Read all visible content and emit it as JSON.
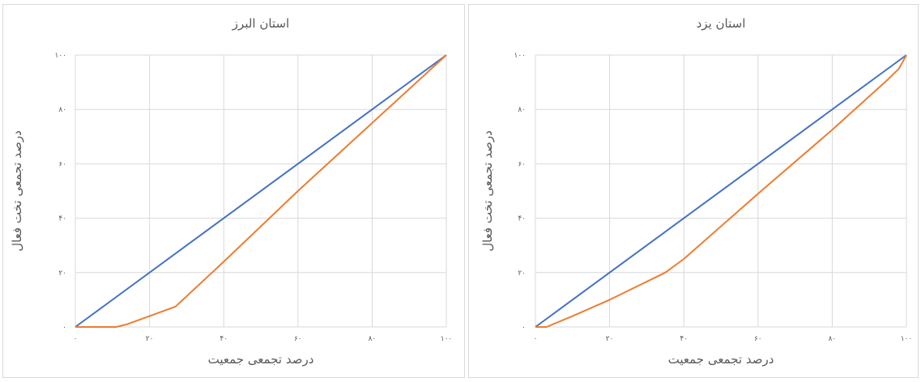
{
  "chart_data": [
    {
      "type": "line",
      "title": "استان البرز",
      "xlabel": "درصد تجمعی جمعیت",
      "ylabel": "درصد تجمعی تخت فعال",
      "xlim": [
        0,
        100
      ],
      "ylim": [
        0,
        100
      ],
      "xticks": [
        0,
        20,
        40,
        60,
        80,
        100
      ],
      "yticks": [
        0,
        20,
        40,
        60,
        80,
        100
      ],
      "xtick_labels": [
        "۰",
        "۲۰",
        "۴۰",
        "۶۰",
        "۸۰",
        "۱۰۰"
      ],
      "ytick_labels": [
        "۰",
        "۲۰",
        "۴۰",
        "۶۰",
        "۸۰",
        "۱۰۰"
      ],
      "grid": true,
      "legend": "none",
      "series": [
        {
          "color": "#4472C4",
          "points": [
            [
              0,
              0
            ],
            [
              100,
              100
            ]
          ]
        },
        {
          "color": "#ED7D31",
          "points": [
            [
              0,
              0
            ],
            [
              11,
              0
            ],
            [
              14,
              1
            ],
            [
              20,
              4
            ],
            [
              27,
              7.5
            ],
            [
              40,
              24
            ],
            [
              60,
              50
            ],
            [
              80,
              75
            ],
            [
              100,
              100
            ]
          ]
        }
      ]
    },
    {
      "type": "line",
      "title": "استان یزد",
      "xlabel": "درصد تجمعی جمعیت",
      "ylabel": "درصد تجمعی تخت فعال",
      "xlim": [
        0,
        100
      ],
      "ylim": [
        0,
        100
      ],
      "xticks": [
        0,
        20,
        40,
        60,
        80,
        100
      ],
      "yticks": [
        0,
        20,
        40,
        60,
        80,
        100
      ],
      "xtick_labels": [
        "۰",
        "۲۰",
        "۴۰",
        "۶۰",
        "۸۰",
        "۱۰۰"
      ],
      "ytick_labels": [
        "۰",
        "۲۰",
        "۴۰",
        "۶۰",
        "۸۰",
        "۱۰۰"
      ],
      "grid": true,
      "legend": "none",
      "series": [
        {
          "color": "#4472C4",
          "points": [
            [
              0,
              0
            ],
            [
              100,
              100
            ]
          ]
        },
        {
          "color": "#ED7D31",
          "points": [
            [
              0,
              0
            ],
            [
              3,
              0
            ],
            [
              10,
              4
            ],
            [
              20,
              10
            ],
            [
              35,
              20
            ],
            [
              40,
              25
            ],
            [
              60,
              49
            ],
            [
              80,
              72.5
            ],
            [
              95,
              91
            ],
            [
              98,
              95
            ],
            [
              100,
              100
            ]
          ]
        }
      ]
    }
  ]
}
